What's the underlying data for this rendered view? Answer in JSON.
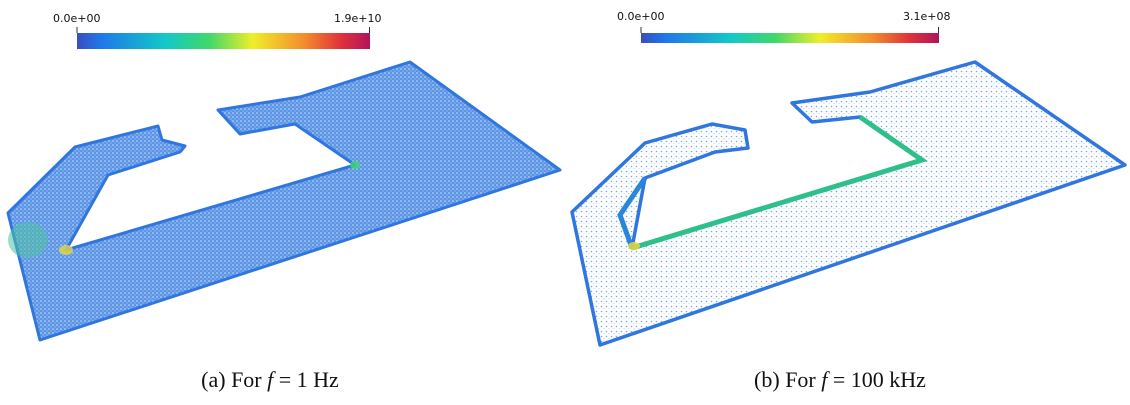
{
  "panels": [
    {
      "colorbar": {
        "min_label": "0.0e+00",
        "max_label": "1.9e+10"
      },
      "caption": {
        "label": "(a) For",
        "variable": "f",
        "value": "= 1 Hz"
      }
    },
    {
      "colorbar": {
        "min_label": "0.0e+00",
        "max_label": "3.1e+08"
      },
      "caption": {
        "label": "(b) For",
        "variable": "f",
        "value": "= 100 kHz"
      }
    }
  ]
}
